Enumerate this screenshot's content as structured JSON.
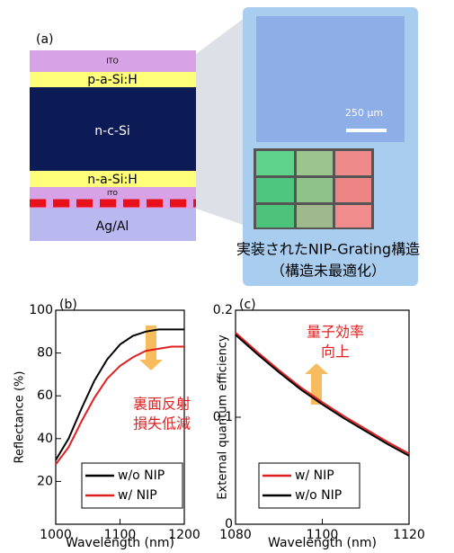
{
  "diagram": {
    "label": "(a)",
    "layers": [
      "ITO",
      "p-a-Si:H",
      "n-c-Si",
      "n-a-Si:H",
      "ITO",
      "Ag/Al"
    ],
    "scale_bar": "250 µm",
    "caption": [
      "実装されたNIP-Grating構造",
      "（構造未最適化）"
    ]
  },
  "chart_data": [
    {
      "type": "line",
      "label": "(b)",
      "x_label": "Wavelength (nm)",
      "y_label": "Reflectance (%)",
      "x": [
        1000,
        1020,
        1040,
        1060,
        1080,
        1100,
        1120,
        1140,
        1160,
        1180,
        1200
      ],
      "series": [
        {
          "name": "w/o NIP",
          "color": "#000000",
          "values": [
            30,
            40,
            54,
            67,
            77,
            84,
            88,
            90,
            91,
            91,
            91
          ]
        },
        {
          "name": "w/ NIP",
          "color": "#e02020",
          "values": [
            28,
            36,
            48,
            59,
            68,
            74,
            78,
            81,
            82,
            83,
            83
          ]
        }
      ],
      "xlim": [
        1000,
        1200
      ],
      "xticks": [
        1000,
        1100,
        1200
      ],
      "ylim": [
        0,
        100
      ],
      "yticks": [
        20,
        40,
        60,
        80,
        100
      ],
      "legend": "lower right",
      "annotation": [
        "裏面反射",
        "損失低減"
      ],
      "arrow": "down"
    },
    {
      "type": "line",
      "label": "(c)",
      "x_label": "Wavelength (nm)",
      "y_label": "External quantum efficiency",
      "x": [
        1080,
        1085,
        1090,
        1095,
        1100,
        1105,
        1110,
        1115,
        1120
      ],
      "series": [
        {
          "name": "w/ NIP",
          "color": "#e02020",
          "values": [
            0.179,
            0.161,
            0.144,
            0.128,
            0.114,
            0.101,
            0.089,
            0.077,
            0.066
          ]
        },
        {
          "name": "w/o NIP",
          "color": "#000000",
          "values": [
            0.177,
            0.159,
            0.142,
            0.126,
            0.112,
            0.099,
            0.087,
            0.075,
            0.064
          ]
        }
      ],
      "xlim": [
        1080,
        1120
      ],
      "xticks": [
        1080,
        1100,
        1120
      ],
      "ylim": [
        0,
        0.2
      ],
      "yticks": [
        0,
        0.1,
        0.2
      ],
      "legend": "lower left",
      "annotation": [
        "量子効率",
        "向上"
      ],
      "arrow": "up"
    }
  ]
}
